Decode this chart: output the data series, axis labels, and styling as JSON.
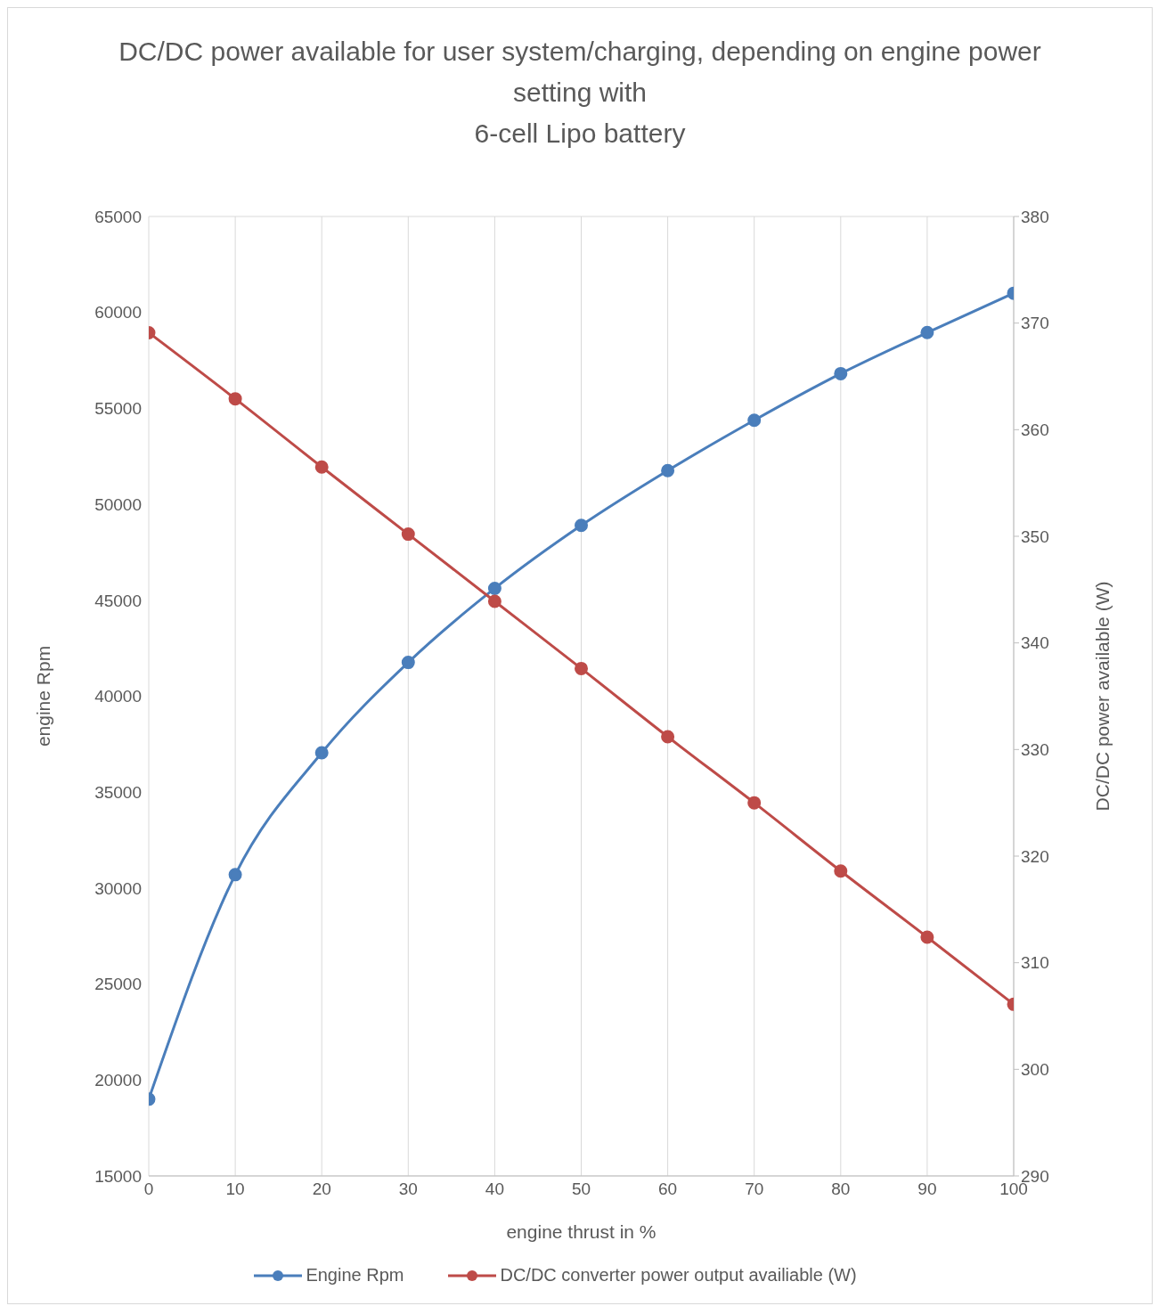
{
  "chart_data": {
    "type": "line",
    "title": "DC/DC power available for user system/charging, depending on engine power setting with\n6-cell Lipo battery",
    "xlabel": "engine thrust in %",
    "ylabel": "engine Rpm",
    "y2label": "DC/DC power available (W)",
    "x": [
      0,
      10,
      20,
      30,
      40,
      50,
      60,
      70,
      80,
      90,
      100
    ],
    "series": [
      {
        "name": "Engine Rpm",
        "color": "#4a7ebb",
        "values": [
          19000,
          30700,
          37050,
          41760,
          45620,
          48900,
          51760,
          54380,
          56810,
          58950,
          61000
        ]
      },
      {
        "name": "DC/DC converter power output availiable (W)",
        "color": "#be4b48",
        "axis": "y2",
        "values": [
          369.1,
          362.9,
          356.5,
          350.2,
          343.9,
          337.6,
          331.2,
          325.0,
          318.6,
          312.4,
          306.1
        ]
      }
    ],
    "xlim": [
      0,
      100
    ],
    "xticks": [
      0,
      10,
      20,
      30,
      40,
      50,
      60,
      70,
      80,
      90,
      100
    ],
    "ylim": [
      15000,
      65000
    ],
    "yticks": [
      15000,
      20000,
      25000,
      30000,
      35000,
      40000,
      45000,
      50000,
      55000,
      60000,
      65000
    ],
    "y2lim": [
      290,
      380
    ],
    "y2ticks": [
      290,
      300,
      310,
      320,
      330,
      340,
      350,
      360,
      370,
      380
    ],
    "grid": true,
    "legend": "bottom",
    "marker": "circle",
    "line_style": "solid"
  }
}
